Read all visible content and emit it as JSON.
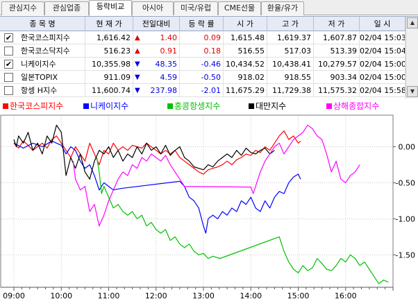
{
  "tabs": [
    "관심지수",
    "관심업종",
    "등락비교",
    "아시아",
    "미국/유럽",
    "CME선물",
    "환율/유가"
  ],
  "active_tab": 2,
  "colors": {
    "up": "#e00000",
    "down": "#0000e0",
    "kospi": "#ff0000",
    "nikkei": "#0000ff",
    "hangseng": "#00c000",
    "taiwan": "#000000",
    "shanghai": "#ff00ff"
  },
  "table": {
    "headers": [
      "종 목 명",
      "현 재 가",
      "전일대비",
      "등 락 률",
      "시 가",
      "고 가",
      "저 가",
      "일 시"
    ],
    "rows": [
      {
        "checked": true,
        "name": "한국코스피지수",
        "price": "1,616.42",
        "dir": "up",
        "change": "1.40",
        "rate": "0.09",
        "open": "1,615.48",
        "high": "1,619.37",
        "low": "1,607.87",
        "time": "02/04 15:03"
      },
      {
        "checked": false,
        "name": "한국코스닥지수",
        "price": "516.23",
        "dir": "up",
        "change": "0.91",
        "rate": "0.18",
        "open": "516.55",
        "high": "517.03",
        "low": "513.39",
        "time": "02/04 15:04"
      },
      {
        "checked": true,
        "name": "니케이지수",
        "price": "10,355.98",
        "dir": "down",
        "change": "48.35",
        "rate": "-0.46",
        "open": "10,434.52",
        "high": "10,438.41",
        "low": "10,279.57",
        "time": "02/04 15:00"
      },
      {
        "checked": false,
        "name": "일본TOPIX",
        "price": "911.09",
        "dir": "down",
        "change": "4.59",
        "rate": "-0.50",
        "open": "918.02",
        "high": "918.55",
        "low": "903.34",
        "time": "02/04 15:00"
      },
      {
        "checked": false,
        "name": "항셍 H지수",
        "price": "11,600.74",
        "dir": "down",
        "change": "237.98",
        "rate": "-2.01",
        "open": "11,675.29",
        "high": "11,729.38",
        "low": "11,575.32",
        "time": "02/04 15:58"
      }
    ]
  },
  "legend": [
    {
      "label": "한국코스피지수",
      "color": "#ff0000"
    },
    {
      "label": "니케이지수",
      "color": "#0000ff"
    },
    {
      "label": "홍콩항셍지수",
      "color": "#00c000"
    },
    {
      "label": "대만지수",
      "color": "#000000"
    },
    {
      "label": "상해종합지수",
      "color": "#ff00ff"
    }
  ],
  "chart_data": {
    "type": "line",
    "x_ticks": [
      "09:00",
      "10:00",
      "11:00",
      "12:00",
      "13:00",
      "14:00",
      "15:00",
      "16:00"
    ],
    "y_ticks": [
      "0.00",
      "-0.50",
      "-1.00",
      "-1.50"
    ],
    "ylim": [
      -1.95,
      0.38
    ],
    "x_range_hours": [
      9.0,
      17.0
    ],
    "series": [
      {
        "name": "한국코스피지수",
        "color": "#ff0000",
        "points": [
          [
            9.0,
            0.05
          ],
          [
            9.1,
            -0.02
          ],
          [
            9.2,
            0.08
          ],
          [
            9.3,
            0.02
          ],
          [
            9.4,
            -0.05
          ],
          [
            9.5,
            0.0
          ],
          [
            9.6,
            0.05
          ],
          [
            9.7,
            -0.02
          ],
          [
            9.8,
            0.1
          ],
          [
            9.9,
            0.15
          ],
          [
            10.0,
            0.05
          ],
          [
            10.1,
            -0.05
          ],
          [
            10.2,
            -0.15
          ],
          [
            10.3,
            0.0
          ],
          [
            10.4,
            -0.1
          ],
          [
            10.5,
            -0.2
          ],
          [
            10.6,
            0.05
          ],
          [
            10.7,
            -0.1
          ],
          [
            10.8,
            -0.25
          ],
          [
            10.9,
            -0.05
          ],
          [
            11.0,
            -0.1
          ],
          [
            11.1,
            0.05
          ],
          [
            11.2,
            -0.05
          ],
          [
            11.3,
            0.0
          ],
          [
            11.4,
            -0.05
          ],
          [
            11.5,
            0.02
          ],
          [
            11.6,
            0.0
          ],
          [
            11.7,
            -0.02
          ],
          [
            11.8,
            0.05
          ],
          [
            11.9,
            0.0
          ],
          [
            12.0,
            -0.05
          ],
          [
            12.1,
            -0.1
          ],
          [
            12.2,
            -0.05
          ],
          [
            12.3,
            -0.1
          ],
          [
            12.4,
            -0.05
          ],
          [
            12.5,
            -0.15
          ],
          [
            12.6,
            -0.2
          ],
          [
            12.7,
            -0.25
          ],
          [
            12.8,
            -0.3
          ],
          [
            12.9,
            -0.35
          ],
          [
            13.0,
            -0.38
          ],
          [
            13.1,
            -0.32
          ],
          [
            13.2,
            -0.3
          ],
          [
            13.3,
            -0.28
          ],
          [
            13.4,
            -0.25
          ],
          [
            13.5,
            -0.2
          ],
          [
            13.6,
            -0.25
          ],
          [
            13.7,
            -0.18
          ],
          [
            13.8,
            -0.15
          ],
          [
            13.9,
            -0.1
          ],
          [
            14.0,
            -0.12
          ],
          [
            14.1,
            -0.05
          ],
          [
            14.2,
            -0.08
          ],
          [
            14.3,
            0.0
          ],
          [
            14.4,
            -0.05
          ],
          [
            14.5,
            0.05
          ],
          [
            14.6,
            0.15
          ],
          [
            14.7,
            0.22
          ],
          [
            14.8,
            0.1
          ],
          [
            14.9,
            0.15
          ],
          [
            15.0,
            0.05
          ],
          [
            15.05,
            0.08
          ]
        ]
      },
      {
        "name": "니케이지수",
        "color": "#0000ff",
        "points": [
          [
            9.0,
            0.05
          ],
          [
            9.2,
            -0.02
          ],
          [
            9.4,
            0.05
          ],
          [
            9.6,
            0.0
          ],
          [
            9.8,
            0.08
          ],
          [
            10.0,
            0.02
          ],
          [
            10.1,
            -0.1
          ],
          [
            10.2,
            0.0
          ],
          [
            10.3,
            -0.05
          ],
          [
            10.4,
            -0.2
          ],
          [
            10.5,
            -0.3
          ],
          [
            10.6,
            -0.25
          ],
          [
            10.7,
            -0.4
          ],
          [
            10.8,
            -0.6
          ],
          [
            10.9,
            -0.5
          ],
          [
            11.0,
            -0.55
          ],
          [
            11.1,
            -0.6
          ],
          [
            11.25,
            -0.58
          ],
          [
            12.5,
            -0.48
          ],
          [
            12.6,
            -0.55
          ],
          [
            12.7,
            -0.7
          ],
          [
            12.8,
            -0.75
          ],
          [
            12.9,
            -0.85
          ],
          [
            13.0,
            -1.1
          ],
          [
            13.05,
            -1.2
          ],
          [
            13.1,
            -1.0
          ],
          [
            13.2,
            -0.95
          ],
          [
            13.3,
            -1.0
          ],
          [
            13.4,
            -0.9
          ],
          [
            13.5,
            -0.95
          ],
          [
            13.6,
            -0.85
          ],
          [
            13.7,
            -0.9
          ],
          [
            13.8,
            -0.75
          ],
          [
            13.9,
            -0.8
          ],
          [
            14.0,
            -0.7
          ],
          [
            14.1,
            -0.85
          ],
          [
            14.2,
            -0.9
          ],
          [
            14.3,
            -0.75
          ],
          [
            14.4,
            -0.85
          ],
          [
            14.5,
            -0.7
          ],
          [
            14.6,
            -0.62
          ],
          [
            14.7,
            -0.65
          ],
          [
            14.8,
            -0.5
          ],
          [
            14.9,
            -0.42
          ],
          [
            15.0,
            -0.38
          ],
          [
            15.05,
            -0.45
          ]
        ]
      },
      {
        "name": "홍콩항셍지수",
        "color": "#00c000",
        "points": [
          [
            10.75,
            -0.15
          ],
          [
            10.8,
            -0.35
          ],
          [
            10.85,
            -0.65
          ],
          [
            10.9,
            -0.55
          ],
          [
            11.0,
            -0.7
          ],
          [
            11.1,
            -0.85
          ],
          [
            11.2,
            -0.8
          ],
          [
            11.3,
            -0.9
          ],
          [
            11.4,
            -0.95
          ],
          [
            11.5,
            -0.9
          ],
          [
            11.6,
            -1.0
          ],
          [
            11.7,
            -0.95
          ],
          [
            11.8,
            -1.1
          ],
          [
            11.9,
            -1.05
          ],
          [
            12.0,
            -1.15
          ],
          [
            12.1,
            -1.2
          ],
          [
            12.2,
            -1.15
          ],
          [
            12.3,
            -1.3
          ],
          [
            12.4,
            -1.25
          ],
          [
            12.5,
            -1.35
          ],
          [
            12.6,
            -1.4
          ],
          [
            12.7,
            -1.35
          ],
          [
            12.8,
            -1.45
          ],
          [
            12.9,
            -1.5
          ],
          [
            13.0,
            -1.48
          ],
          [
            13.1,
            -1.55
          ],
          [
            13.2,
            -1.52
          ],
          [
            13.35,
            -1.55
          ],
          [
            14.6,
            -1.25
          ],
          [
            14.7,
            -1.45
          ],
          [
            14.8,
            -1.6
          ],
          [
            14.9,
            -1.7
          ],
          [
            15.0,
            -1.75
          ],
          [
            15.1,
            -1.65
          ],
          [
            15.2,
            -1.72
          ],
          [
            15.3,
            -1.68
          ],
          [
            15.4,
            -1.55
          ],
          [
            15.5,
            -1.62
          ],
          [
            15.6,
            -1.7
          ],
          [
            15.7,
            -1.72
          ],
          [
            15.8,
            -1.65
          ],
          [
            15.9,
            -1.55
          ],
          [
            16.0,
            -1.6
          ],
          [
            16.1,
            -1.5
          ],
          [
            16.2,
            -1.55
          ],
          [
            16.3,
            -1.65
          ],
          [
            16.4,
            -1.6
          ],
          [
            16.5,
            -1.7
          ],
          [
            16.6,
            -1.8
          ],
          [
            16.7,
            -1.9
          ],
          [
            16.8,
            -1.85
          ],
          [
            16.9,
            -1.88
          ]
        ]
      },
      {
        "name": "대만지수",
        "color": "#000000",
        "points": [
          [
            9.0,
            0.1
          ],
          [
            9.05,
            0.0
          ],
          [
            9.1,
            0.15
          ],
          [
            9.2,
            0.05
          ],
          [
            9.3,
            0.2
          ],
          [
            9.4,
            -0.05
          ],
          [
            9.5,
            0.05
          ],
          [
            9.6,
            -0.1
          ],
          [
            9.7,
            0.15
          ],
          [
            9.8,
            0.05
          ],
          [
            9.9,
            0.3
          ],
          [
            10.0,
            0.2
          ],
          [
            10.05,
            -0.1
          ],
          [
            10.1,
            -0.4
          ],
          [
            10.2,
            -0.15
          ],
          [
            10.3,
            -0.3
          ],
          [
            10.4,
            -0.1
          ],
          [
            10.5,
            -0.35
          ],
          [
            10.6,
            -0.45
          ],
          [
            10.7,
            -0.2
          ],
          [
            10.8,
            -0.05
          ],
          [
            10.9,
            -0.1
          ],
          [
            11.0,
            0.0
          ],
          [
            11.1,
            -0.15
          ],
          [
            11.2,
            -0.05
          ],
          [
            11.3,
            -0.2
          ],
          [
            11.4,
            -0.1
          ],
          [
            11.5,
            -0.15
          ],
          [
            11.6,
            0.0
          ],
          [
            11.7,
            -0.1
          ],
          [
            11.8,
            0.05
          ],
          [
            11.9,
            -0.05
          ],
          [
            12.0,
            0.0
          ],
          [
            12.1,
            -0.1
          ],
          [
            12.2,
            0.02
          ],
          [
            12.3,
            -0.12
          ],
          [
            12.4,
            -0.05
          ],
          [
            12.5,
            0.0
          ],
          [
            12.6,
            -0.15
          ],
          [
            12.7,
            -0.2
          ],
          [
            12.8,
            -0.28
          ],
          [
            12.9,
            -0.3
          ],
          [
            13.0,
            -0.32
          ],
          [
            13.1,
            -0.25
          ],
          [
            13.2,
            -0.28
          ],
          [
            13.3,
            -0.2
          ],
          [
            13.4,
            -0.15
          ],
          [
            13.5,
            -0.1
          ],
          [
            13.6,
            -0.15
          ],
          [
            13.7,
            -0.05
          ],
          [
            13.8,
            -0.12
          ],
          [
            13.9,
            -0.02
          ],
          [
            14.0,
            -0.08
          ],
          [
            14.1,
            -0.1
          ],
          [
            14.2,
            -0.05
          ],
          [
            14.3,
            -0.02
          ],
          [
            14.4,
            -0.1
          ],
          [
            14.5,
            -0.05
          ]
        ]
      },
      {
        "name": "상해종합지수",
        "color": "#ff00ff",
        "points": [
          [
            10.25,
            -0.2
          ],
          [
            10.3,
            -0.45
          ],
          [
            10.4,
            -0.6
          ],
          [
            10.5,
            -0.55
          ],
          [
            10.6,
            -0.9
          ],
          [
            10.7,
            -0.8
          ],
          [
            10.8,
            -1.1
          ],
          [
            10.9,
            -0.95
          ],
          [
            11.0,
            -0.75
          ],
          [
            11.1,
            -0.6
          ],
          [
            11.2,
            -0.45
          ],
          [
            11.3,
            -0.35
          ],
          [
            11.4,
            -0.4
          ],
          [
            11.5,
            -0.25
          ],
          [
            11.6,
            -0.3
          ],
          [
            11.7,
            -0.15
          ],
          [
            11.8,
            -0.2
          ],
          [
            11.9,
            -0.1
          ],
          [
            12.0,
            -0.15
          ],
          [
            12.1,
            -0.2
          ],
          [
            12.2,
            -0.12
          ],
          [
            12.3,
            -0.25
          ],
          [
            12.4,
            -0.35
          ],
          [
            12.5,
            -0.45
          ],
          [
            12.6,
            -0.55
          ],
          [
            14.0,
            -0.56
          ],
          [
            14.05,
            -0.65
          ],
          [
            14.1,
            -0.55
          ],
          [
            14.2,
            -0.35
          ],
          [
            14.3,
            -0.2
          ],
          [
            14.4,
            -0.1
          ],
          [
            14.5,
            0.0
          ],
          [
            14.6,
            0.05
          ],
          [
            14.7,
            -0.1
          ],
          [
            14.8,
            0.0
          ],
          [
            14.9,
            0.1
          ],
          [
            15.0,
            0.15
          ],
          [
            15.1,
            0.2
          ],
          [
            15.2,
            0.3
          ],
          [
            15.3,
            0.25
          ],
          [
            15.4,
            0.15
          ],
          [
            15.5,
            0.1
          ],
          [
            15.6,
            -0.1
          ],
          [
            15.7,
            -0.35
          ],
          [
            15.8,
            -0.2
          ],
          [
            15.9,
            -0.45
          ],
          [
            16.0,
            -0.5
          ],
          [
            16.1,
            -0.4
          ],
          [
            16.2,
            -0.35
          ],
          [
            16.3,
            -0.25
          ]
        ]
      }
    ]
  }
}
